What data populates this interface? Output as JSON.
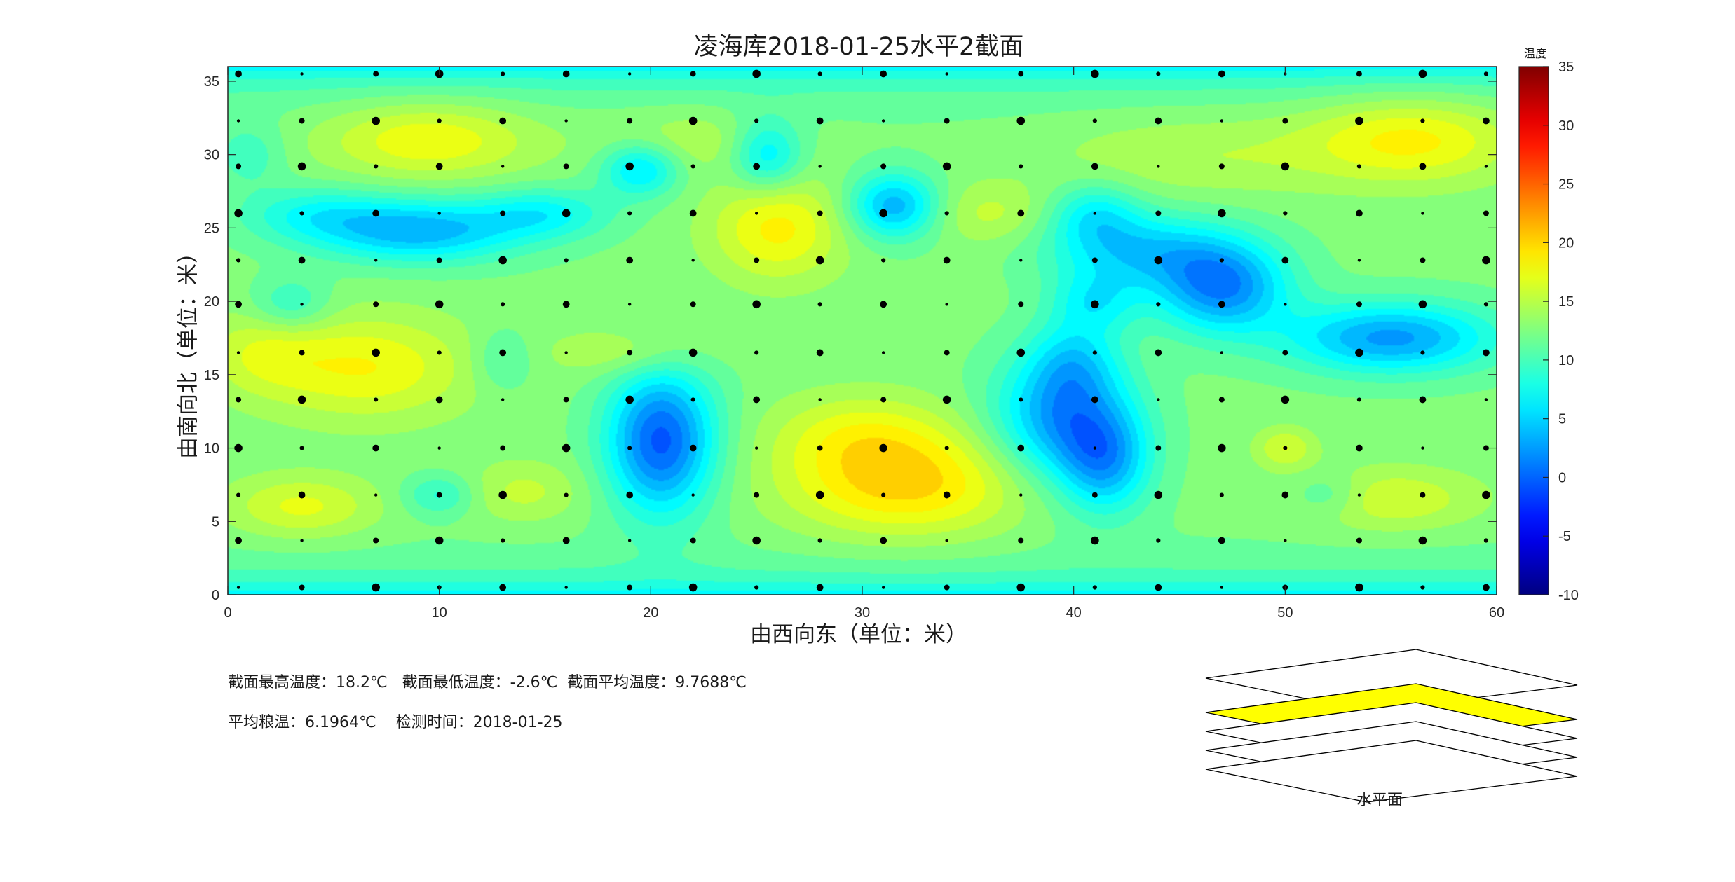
{
  "chart_data": {
    "type": "heatmap",
    "title": "凌海库2018-01-25水平2截面",
    "xlabel": "由西向东（单位：米）",
    "ylabel": "由南向北（单位：米）",
    "xlim": [
      0,
      60
    ],
    "ylim": [
      0,
      36
    ],
    "xticks": [
      0,
      10,
      20,
      30,
      40,
      50,
      60
    ],
    "yticks": [
      0,
      5,
      10,
      15,
      20,
      25,
      30,
      35
    ],
    "colorbar": {
      "title": "温度",
      "range": [
        -10,
        35
      ],
      "ticks": [
        -10,
        -5,
        0,
        5,
        10,
        15,
        20,
        25,
        30,
        35
      ],
      "colormap": "jet"
    },
    "sensor_x": [
      0.5,
      3.5,
      7,
      10,
      13,
      16,
      19,
      22,
      25,
      28,
      31,
      34,
      37.5,
      41,
      44,
      47,
      50,
      53.5,
      56.5,
      59.5
    ],
    "sensor_y": [
      0.5,
      3.7,
      6.8,
      10,
      13.3,
      16.5,
      19.8,
      22.8,
      26,
      29.2,
      32.3,
      35.5
    ],
    "field": {
      "base": 12.5,
      "edge_cool": -6,
      "features": [
        {
          "x": 9.5,
          "y": 31,
          "amp": 5.5,
          "sx": 3.5,
          "sy": 1.8
        },
        {
          "x": 56,
          "y": 31,
          "amp": 6,
          "sx": 3.5,
          "sy": 2
        },
        {
          "x": 22,
          "y": 31,
          "amp": 2.5,
          "sx": 3,
          "sy": 1.5
        },
        {
          "x": 46,
          "y": 30,
          "amp": 2.5,
          "sx": 5,
          "sy": 2
        },
        {
          "x": 9,
          "y": 24.8,
          "amp": -9,
          "sx": 3.5,
          "sy": 1.5
        },
        {
          "x": 15,
          "y": 26,
          "amp": -5,
          "sx": 2.2,
          "sy": 1.2
        },
        {
          "x": 4,
          "y": 26,
          "amp": -4,
          "sx": 2.5,
          "sy": 1.3
        },
        {
          "x": 19.5,
          "y": 29,
          "amp": -7,
          "sx": 1.3,
          "sy": 1.3
        },
        {
          "x": 25.5,
          "y": 30,
          "amp": -7,
          "sx": 1.2,
          "sy": 1.7
        },
        {
          "x": 31.5,
          "y": 26.5,
          "amp": -9,
          "sx": 1.5,
          "sy": 1.6
        },
        {
          "x": 26,
          "y": 25,
          "amp": 6,
          "sx": 2.2,
          "sy": 2.5
        },
        {
          "x": 36,
          "y": 26,
          "amp": 3,
          "sx": 2,
          "sy": 1.5
        },
        {
          "x": 3,
          "y": 19.8,
          "amp": -4,
          "sx": 1.3,
          "sy": 1.3
        },
        {
          "x": 41,
          "y": 20,
          "amp": -5,
          "sx": 1.5,
          "sy": 1.5
        },
        {
          "x": 47,
          "y": 21,
          "amp": -11,
          "sx": 2.2,
          "sy": 2.2
        },
        {
          "x": 43,
          "y": 23.5,
          "amp": -7,
          "sx": 3,
          "sy": 1.8
        },
        {
          "x": 41,
          "y": 26,
          "amp": -5,
          "sx": 1.5,
          "sy": 1.5
        },
        {
          "x": 55,
          "y": 17.5,
          "amp": -10,
          "sx": 3.5,
          "sy": 1.7
        },
        {
          "x": 6.5,
          "y": 15.5,
          "amp": 5.5,
          "sx": 3.5,
          "sy": 2.5
        },
        {
          "x": 1.5,
          "y": 16.5,
          "amp": 3,
          "sx": 2,
          "sy": 2
        },
        {
          "x": 19,
          "y": 16.5,
          "amp": 3,
          "sx": 2.5,
          "sy": 1.2
        },
        {
          "x": 13,
          "y": 16,
          "amp": -3,
          "sx": 1,
          "sy": 1.5
        },
        {
          "x": 20.5,
          "y": 10.5,
          "amp": -13,
          "sx": 1.8,
          "sy": 3.5
        },
        {
          "x": 39.5,
          "y": 12,
          "amp": -10,
          "sx": 2.3,
          "sy": 3
        },
        {
          "x": 41.5,
          "y": 9,
          "amp": -8,
          "sx": 1.5,
          "sy": 2.5
        },
        {
          "x": 40,
          "y": 16,
          "amp": -5,
          "sx": 1.5,
          "sy": 2
        },
        {
          "x": 32,
          "y": 7.5,
          "amp": 7.5,
          "sx": 4,
          "sy": 2.5
        },
        {
          "x": 30,
          "y": 11,
          "amp": 4,
          "sx": 3,
          "sy": 2
        },
        {
          "x": 3.5,
          "y": 6,
          "amp": 4.5,
          "sx": 2.5,
          "sy": 1.5
        },
        {
          "x": 14,
          "y": 7,
          "amp": 3,
          "sx": 2,
          "sy": 1.5
        },
        {
          "x": 55,
          "y": 6.5,
          "amp": 4,
          "sx": 3,
          "sy": 1.5
        },
        {
          "x": 50,
          "y": 10,
          "amp": 4,
          "sx": 1,
          "sy": 1
        },
        {
          "x": 10,
          "y": 6.8,
          "amp": -4,
          "sx": 1.2,
          "sy": 1
        },
        {
          "x": 52,
          "y": 6.8,
          "amp": -3,
          "sx": 1.2,
          "sy": 1
        },
        {
          "x": 1,
          "y": 30,
          "amp": -3,
          "sx": 1.2,
          "sy": 1.5
        }
      ]
    }
  },
  "info": {
    "line1": "截面最高温度：18.2℃   截面最低温度：-2.6℃  截面平均温度：9.7688℃",
    "line2": "平均粮温：6.1964℃    检测时间：2018-01-25"
  },
  "layers": {
    "label": "水平面",
    "count": 4,
    "highlighted_index": 1,
    "highlight_color": "#ffff00"
  }
}
